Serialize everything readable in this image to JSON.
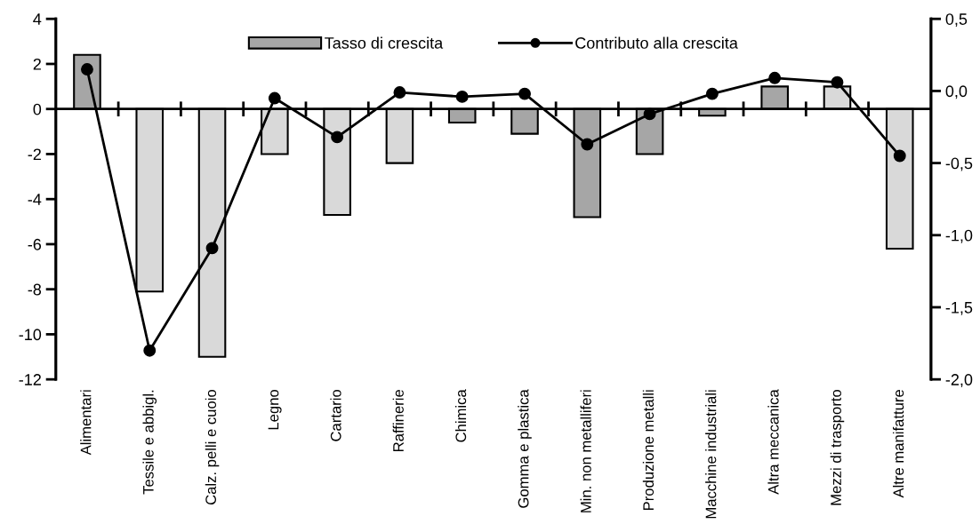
{
  "chart_data": {
    "type": "bar",
    "categories": [
      "Alimentari",
      "Tessile e abbigl.",
      "Calz. pelli e cuoio",
      "Legno",
      "Cartario",
      "Raffinerie",
      "Chimica",
      "Gomma e plastica",
      "Min. non metalliferi",
      "Produzione metalli",
      "Macchine industriali",
      "Altra meccanica",
      "Mezzi di trasporto",
      "Altre manifatture"
    ],
    "series": [
      {
        "name": "Tasso di crescita",
        "color": "#a6a6a6",
        "colors": [
          "#a6a6a6",
          "#d9d9d9",
          "#d9d9d9",
          "#d9d9d9",
          "#d9d9d9",
          "#d9d9d9",
          "#a6a6a6",
          "#a6a6a6",
          "#a6a6a6",
          "#a6a6a6",
          "#a6a6a6",
          "#a6a6a6",
          "#d9d9d9",
          "#d9d9d9"
        ],
        "values": [
          2.4,
          -8.1,
          -11.0,
          -2.0,
          -4.7,
          -2.4,
          -0.6,
          -1.1,
          -4.8,
          -2.0,
          -0.3,
          1.0,
          1.0,
          -6.2
        ]
      },
      {
        "name": "Contributo alla crescita",
        "type": "line",
        "axis": "y2",
        "color": "#000000",
        "marker": "circle",
        "values": [
          0.15,
          -1.8,
          -1.09,
          -0.05,
          -0.32,
          -0.01,
          -0.04,
          -0.02,
          -0.37,
          -0.16,
          -0.02,
          0.09,
          0.06,
          -0.45
        ]
      }
    ],
    "ylim": [
      -12,
      4
    ],
    "yticks": [
      -12,
      -10,
      -8,
      -6,
      -4,
      -2,
      0,
      2,
      4
    ],
    "y2lim": [
      -2.0,
      0.5
    ],
    "y2ticks": [
      {
        "value": -2.0,
        "label": "-2,0"
      },
      {
        "value": -1.5,
        "label": "-1,5"
      },
      {
        "value": -1.0,
        "label": "-1,0"
      },
      {
        "value": -0.5,
        "label": "-0,5"
      },
      {
        "value": 0.0,
        "label": "0,0"
      },
      {
        "value": 0.5,
        "label": "0,5"
      }
    ],
    "ref_lines": [
      {
        "axis": "y",
        "value": 0,
        "color": "#000000"
      }
    ],
    "grid": false,
    "legend": "top"
  }
}
